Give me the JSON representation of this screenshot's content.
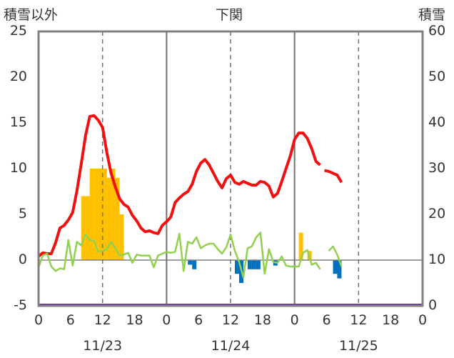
{
  "chart_data": {
    "type": "bar+line",
    "title": "下関",
    "left_axis_label": "積雪以外",
    "right_axis_label": "積雪",
    "left_ylim": [
      -5,
      25
    ],
    "left_yticks": [
      -5,
      0,
      5,
      10,
      15,
      20,
      25
    ],
    "right_ylim": [
      0,
      60
    ],
    "right_yticks": [
      0,
      10,
      20,
      30,
      40,
      50,
      60
    ],
    "x_range_hours": [
      0,
      72
    ],
    "x_tick_labels": [
      "0",
      "6",
      "12",
      "18",
      "0",
      "6",
      "12",
      "18",
      "0",
      "6",
      "12",
      "18",
      "0"
    ],
    "date_labels": [
      "11/23",
      "11/24",
      "11/25"
    ],
    "grid": "dashed-vertical",
    "series": [
      {
        "color": "#f01010",
        "segments": [
          [
            [
              0,
              0.4
            ],
            [
              0.8,
              0.8
            ],
            [
              1.6,
              0.7
            ],
            [
              2.4,
              0.7
            ],
            [
              3.2,
              1.9
            ],
            [
              4,
              3.5
            ],
            [
              4.8,
              3.8
            ],
            [
              5.6,
              4.4
            ],
            [
              6.4,
              5.2
            ],
            [
              7.2,
              7.6
            ],
            [
              8,
              10.5
            ],
            [
              8.8,
              13.6
            ],
            [
              9.6,
              15.7
            ],
            [
              10.4,
              15.8
            ],
            [
              11.2,
              15.3
            ],
            [
              12,
              14.5
            ],
            [
              12.8,
              11.8
            ],
            [
              13.6,
              9.5
            ],
            [
              14.4,
              8
            ],
            [
              15.2,
              6.7
            ],
            [
              16,
              6.1
            ],
            [
              16.8,
              5.8
            ],
            [
              17.6,
              4.9
            ],
            [
              18.4,
              4.3
            ],
            [
              19.2,
              3.5
            ],
            [
              20,
              3.1
            ],
            [
              20.8,
              3.2
            ],
            [
              21.6,
              3
            ],
            [
              22.4,
              2.9
            ],
            [
              23.2,
              3.8
            ],
            [
              24,
              4.2
            ],
            [
              24.8,
              4.7
            ],
            [
              25.6,
              6.3
            ],
            [
              26.4,
              6.8
            ],
            [
              27.2,
              7.2
            ],
            [
              28,
              7.5
            ],
            [
              28.8,
              8.3
            ],
            [
              29.6,
              9.7
            ],
            [
              30.4,
              10.6
            ],
            [
              31.2,
              11
            ],
            [
              32,
              10.4
            ],
            [
              32.8,
              9.5
            ],
            [
              33.6,
              8.6
            ],
            [
              34.4,
              7.9
            ],
            [
              35.2,
              8.9
            ],
            [
              36,
              9.3
            ],
            [
              36.8,
              8.5
            ],
            [
              37.6,
              8.3
            ],
            [
              38.4,
              8.6
            ],
            [
              39.2,
              8.4
            ],
            [
              40,
              8.2
            ],
            [
              40.8,
              8.2
            ],
            [
              41.6,
              8.6
            ],
            [
              42.4,
              8.5
            ],
            [
              43.2,
              8.1
            ],
            [
              44,
              6.9
            ],
            [
              44.8,
              7.3
            ],
            [
              45.6,
              8.6
            ],
            [
              46.4,
              10
            ],
            [
              47.2,
              11.4
            ],
            [
              48,
              13.2
            ],
            [
              48.8,
              13.9
            ],
            [
              49.6,
              13.9
            ],
            [
              50.4,
              13.3
            ],
            [
              51.2,
              12.2
            ],
            [
              52,
              10.8
            ],
            [
              52.8,
              10.4
            ]
          ],
          [
            [
              53.6,
              9.8
            ],
            [
              54.4,
              9.7
            ],
            [
              55.2,
              9.5
            ],
            [
              56,
              9.3
            ],
            [
              56.8,
              8.5
            ]
          ]
        ]
      },
      {
        "color": "#92d050",
        "segments": [
          [
            [
              0,
              -0.8
            ],
            [
              0.8,
              0.5
            ],
            [
              1.6,
              0.7
            ],
            [
              2.4,
              -0.7
            ],
            [
              3.2,
              -1.2
            ],
            [
              4,
              -0.9
            ],
            [
              4.8,
              -1
            ],
            [
              5.6,
              2.2
            ],
            [
              6.4,
              -0.6
            ],
            [
              7.2,
              2
            ],
            [
              8,
              1.6
            ],
            [
              8.8,
              2.8
            ],
            [
              9.6,
              2.2
            ],
            [
              10.4,
              2.1
            ],
            [
              11.2,
              0.9
            ],
            [
              12,
              1
            ],
            [
              12.8,
              1.2
            ],
            [
              13.6,
              2
            ],
            [
              14.4,
              1.3
            ],
            [
              15.2,
              0.5
            ],
            [
              16,
              0.6
            ],
            [
              16.8,
              0.8
            ],
            [
              17.6,
              -0.3
            ],
            [
              18.4,
              0.6
            ],
            [
              19.2,
              0.5
            ],
            [
              20,
              0.5
            ],
            [
              20.8,
              0.5
            ],
            [
              21.6,
              -0.8
            ],
            [
              22.4,
              0.5
            ],
            [
              23.2,
              0.7
            ],
            [
              24,
              0.9
            ],
            [
              24.8,
              0.8
            ],
            [
              25.6,
              0.9
            ],
            [
              26.4,
              2.9
            ],
            [
              27.2,
              -1.2
            ],
            [
              28,
              2
            ],
            [
              28.8,
              1.8
            ],
            [
              29.6,
              2.5
            ],
            [
              30.4,
              1.3
            ],
            [
              31.2,
              1.6
            ],
            [
              32,
              1.8
            ],
            [
              32.8,
              1.8
            ],
            [
              33.6,
              1.2
            ],
            [
              34.4,
              0.7
            ],
            [
              35.2,
              1.4
            ],
            [
              36,
              2.8
            ],
            [
              36.8,
              1
            ],
            [
              37.6,
              -0.2
            ],
            [
              38.4,
              -1.9
            ],
            [
              39.2,
              1.3
            ],
            [
              40,
              1.5
            ],
            [
              40.8,
              2.5
            ],
            [
              41.6,
              3
            ],
            [
              42.4,
              -1.5
            ],
            [
              43.2,
              1.2
            ],
            [
              44,
              -0.2
            ],
            [
              44.8,
              -0.3
            ],
            [
              45.6,
              0.4
            ],
            [
              46.4,
              -0.6
            ],
            [
              47.2,
              -0.7
            ],
            [
              48,
              -0.7
            ],
            [
              48.8,
              -0.7
            ],
            [
              49.6,
              0.8
            ],
            [
              50.4,
              1.1
            ],
            [
              51.2,
              -0.5
            ],
            [
              52,
              -0.3
            ],
            [
              52.8,
              -1
            ]
          ],
          [
            [
              54.4,
              1
            ],
            [
              55.2,
              1.5
            ],
            [
              56,
              0.6
            ],
            [
              56.8,
              -0.7
            ]
          ]
        ]
      }
    ],
    "bars": [
      {
        "color": "#ffc000",
        "width_hours": 0.8,
        "values": [
          [
            8.0,
            7
          ],
          [
            8.8,
            7
          ],
          [
            9.6,
            10
          ],
          [
            10.4,
            10
          ],
          [
            11.2,
            10
          ],
          [
            12.0,
            10
          ],
          [
            12.8,
            9
          ],
          [
            13.6,
            10
          ],
          [
            14.4,
            9
          ],
          [
            15.2,
            5
          ],
          [
            48.8,
            3
          ],
          [
            50.4,
            1
          ]
        ]
      },
      {
        "color": "#0070c0",
        "width_hours": 0.8,
        "values": [
          [
            28.0,
            -0.5
          ],
          [
            28.8,
            -1
          ],
          [
            36.8,
            -1.5
          ],
          [
            37.6,
            -2.5
          ],
          [
            39.2,
            -1
          ],
          [
            40.0,
            -1
          ],
          [
            40.8,
            -1
          ],
          [
            44.0,
            -0.6
          ],
          [
            55.2,
            -1.5
          ],
          [
            56.0,
            -2
          ]
        ]
      }
    ],
    "baseline_line": {
      "value": -5,
      "color": "#7030a0"
    }
  }
}
